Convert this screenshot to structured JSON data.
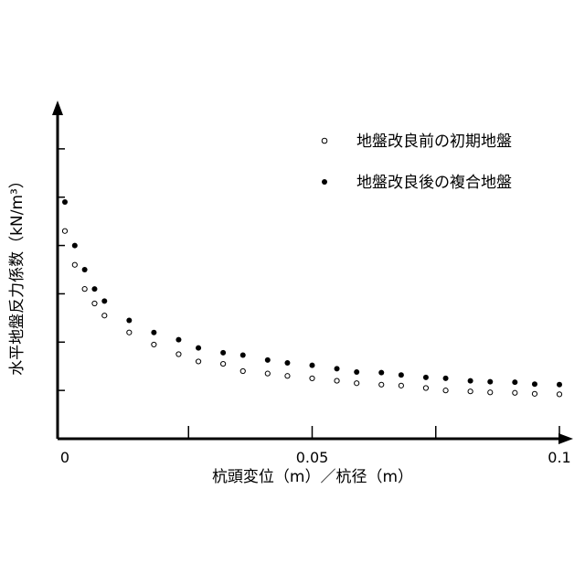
{
  "chart_data": {
    "type": "scatter",
    "xlabel": "杭頭変位（m）／杭径（m）",
    "ylabel": "水平地盤反力係数（kN/m³）",
    "xlim": [
      0,
      0.1
    ],
    "x_ticks": [
      0,
      0.025,
      0.05,
      0.075,
      0.1
    ],
    "x_tick_labels": [
      "0",
      "",
      "0.05",
      "",
      "0.1"
    ],
    "y_ticks": [
      1,
      2,
      3,
      4,
      5,
      6
    ],
    "y_tick_labels": [
      "",
      "",
      "",
      "",
      "",
      ""
    ],
    "ylim": [
      0,
      7
    ],
    "grid": false,
    "legend_position": "top-right",
    "series": [
      {
        "name": "地盤改良前の初期地盤",
        "marker": "open-circle",
        "color": "#000000",
        "x": [
          0,
          0.002,
          0.004,
          0.006,
          0.008,
          0.013,
          0.018,
          0.023,
          0.027,
          0.032,
          0.036,
          0.041,
          0.045,
          0.05,
          0.055,
          0.059,
          0.064,
          0.068,
          0.073,
          0.077,
          0.082,
          0.086,
          0.091,
          0.095,
          0.1
        ],
        "y": [
          4.3,
          3.6,
          3.1,
          2.8,
          2.55,
          2.2,
          1.95,
          1.75,
          1.6,
          1.55,
          1.4,
          1.35,
          1.3,
          1.25,
          1.2,
          1.15,
          1.12,
          1.1,
          1.05,
          1.0,
          0.98,
          0.96,
          0.95,
          0.93,
          0.92
        ]
      },
      {
        "name": "地盤改良後の複合地盤",
        "marker": "filled-circle",
        "color": "#000000",
        "x": [
          0,
          0.002,
          0.004,
          0.006,
          0.008,
          0.013,
          0.018,
          0.023,
          0.027,
          0.032,
          0.036,
          0.041,
          0.045,
          0.05,
          0.055,
          0.059,
          0.064,
          0.068,
          0.073,
          0.077,
          0.082,
          0.086,
          0.091,
          0.095,
          0.1
        ],
        "y": [
          4.9,
          4.0,
          3.5,
          3.1,
          2.85,
          2.45,
          2.2,
          2.05,
          1.88,
          1.78,
          1.73,
          1.63,
          1.57,
          1.52,
          1.45,
          1.38,
          1.37,
          1.32,
          1.27,
          1.25,
          1.2,
          1.18,
          1.17,
          1.13,
          1.12
        ]
      }
    ]
  }
}
